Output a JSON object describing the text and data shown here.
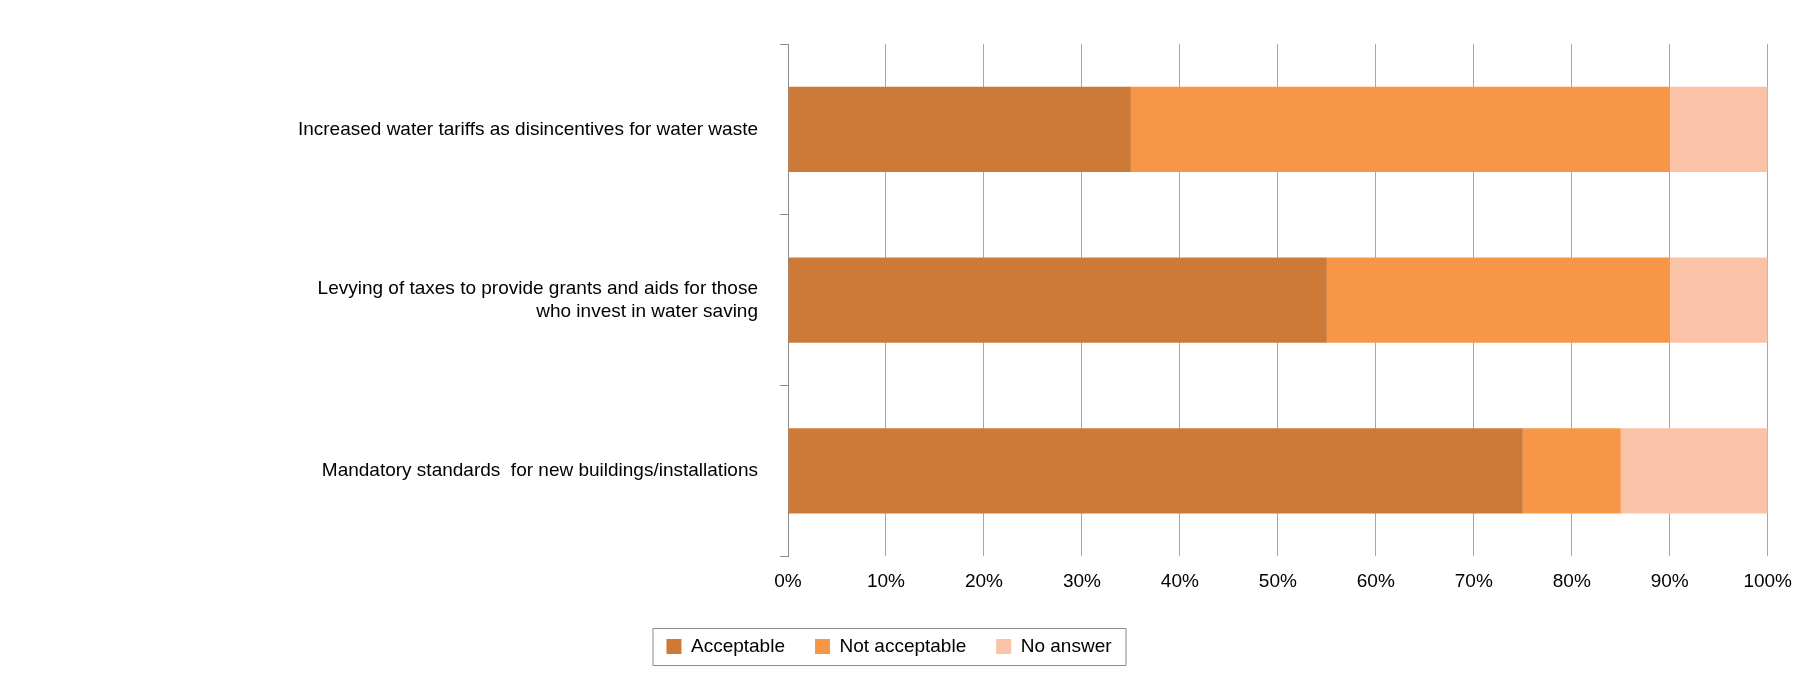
{
  "chart_data": {
    "type": "bar",
    "orientation": "horizontal",
    "stacked": true,
    "categories": [
      "Increased water tariffs as disincentives for water waste",
      "Levying of taxes to provide grants and aids for those who invest in water saving",
      "Mandatory standards  for new buildings/installations"
    ],
    "series": [
      {
        "name": "Acceptable",
        "color": "#cd7a38",
        "values": [
          35,
          55,
          75
        ]
      },
      {
        "name": "Not acceptable",
        "color": "#f79646",
        "values": [
          55,
          35,
          10
        ]
      },
      {
        "name": "No answer",
        "color": "#fac2a6",
        "values": [
          10,
          10,
          15
        ]
      }
    ],
    "xlim": [
      0,
      100
    ],
    "xticks": [
      {
        "value": 0,
        "label": "0%"
      },
      {
        "value": 10,
        "label": "10%"
      },
      {
        "value": 20,
        "label": "20%"
      },
      {
        "value": 30,
        "label": "30%"
      },
      {
        "value": 40,
        "label": "40%"
      },
      {
        "value": 50,
        "label": "50%"
      },
      {
        "value": 60,
        "label": "60%"
      },
      {
        "value": 70,
        "label": "70%"
      },
      {
        "value": 80,
        "label": "80%"
      },
      {
        "value": 90,
        "label": "90%"
      },
      {
        "value": 100,
        "label": "100%"
      }
    ],
    "grid": "x",
    "legend": "bottom"
  }
}
